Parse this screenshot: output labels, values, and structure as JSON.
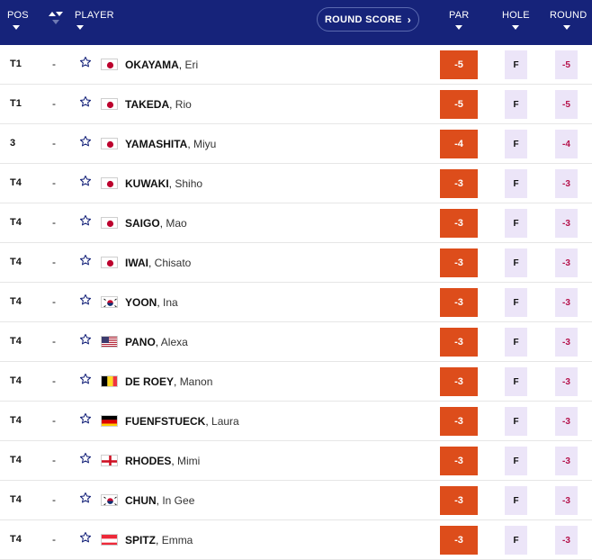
{
  "header": {
    "pos_label": "POS",
    "player_label": "PLAYER",
    "round_score_button": "ROUND SCORE",
    "par_label": "PAR",
    "hole_label": "HOLE",
    "round_label": "ROUND"
  },
  "colors": {
    "header_bg": "#16237a",
    "par_bg": "#dd4d1b",
    "score_cell_bg": "#ece5f8",
    "round_text": "#b5114a"
  },
  "players": [
    {
      "pos": "T1",
      "move": "-",
      "last": "OKAYAMA",
      "first": "Eri",
      "flag": "japan-flag",
      "par": "-5",
      "hole": "F",
      "round": "-5"
    },
    {
      "pos": "T1",
      "move": "-",
      "last": "TAKEDA",
      "first": "Rio",
      "flag": "japan-flag",
      "par": "-5",
      "hole": "F",
      "round": "-5"
    },
    {
      "pos": "3",
      "move": "-",
      "last": "YAMASHITA",
      "first": "Miyu",
      "flag": "japan-flag",
      "par": "-4",
      "hole": "F",
      "round": "-4"
    },
    {
      "pos": "T4",
      "move": "-",
      "last": "KUWAKI",
      "first": "Shiho",
      "flag": "japan-flag",
      "par": "-3",
      "hole": "F",
      "round": "-3"
    },
    {
      "pos": "T4",
      "move": "-",
      "last": "SAIGO",
      "first": "Mao",
      "flag": "japan-flag",
      "par": "-3",
      "hole": "F",
      "round": "-3"
    },
    {
      "pos": "T4",
      "move": "-",
      "last": "IWAI",
      "first": "Chisato",
      "flag": "japan-flag",
      "par": "-3",
      "hole": "F",
      "round": "-3"
    },
    {
      "pos": "T4",
      "move": "-",
      "last": "YOON",
      "first": "Ina",
      "flag": "korea-flag",
      "par": "-3",
      "hole": "F",
      "round": "-3"
    },
    {
      "pos": "T4",
      "move": "-",
      "last": "PANO",
      "first": "Alexa",
      "flag": "usa-flag",
      "par": "-3",
      "hole": "F",
      "round": "-3"
    },
    {
      "pos": "T4",
      "move": "-",
      "last": "DE ROEY",
      "first": "Manon",
      "flag": "belgium-flag",
      "par": "-3",
      "hole": "F",
      "round": "-3"
    },
    {
      "pos": "T4",
      "move": "-",
      "last": "FUENFSTUECK",
      "first": "Laura",
      "flag": "germany-flag",
      "par": "-3",
      "hole": "F",
      "round": "-3"
    },
    {
      "pos": "T4",
      "move": "-",
      "last": "RHODES",
      "first": "Mimi",
      "flag": "england-flag",
      "par": "-3",
      "hole": "F",
      "round": "-3"
    },
    {
      "pos": "T4",
      "move": "-",
      "last": "CHUN",
      "first": "In Gee",
      "flag": "korea-flag",
      "par": "-3",
      "hole": "F",
      "round": "-3"
    },
    {
      "pos": "T4",
      "move": "-",
      "last": "SPITZ",
      "first": "Emma",
      "flag": "austria-flag",
      "par": "-3",
      "hole": "F",
      "round": "-3"
    }
  ]
}
